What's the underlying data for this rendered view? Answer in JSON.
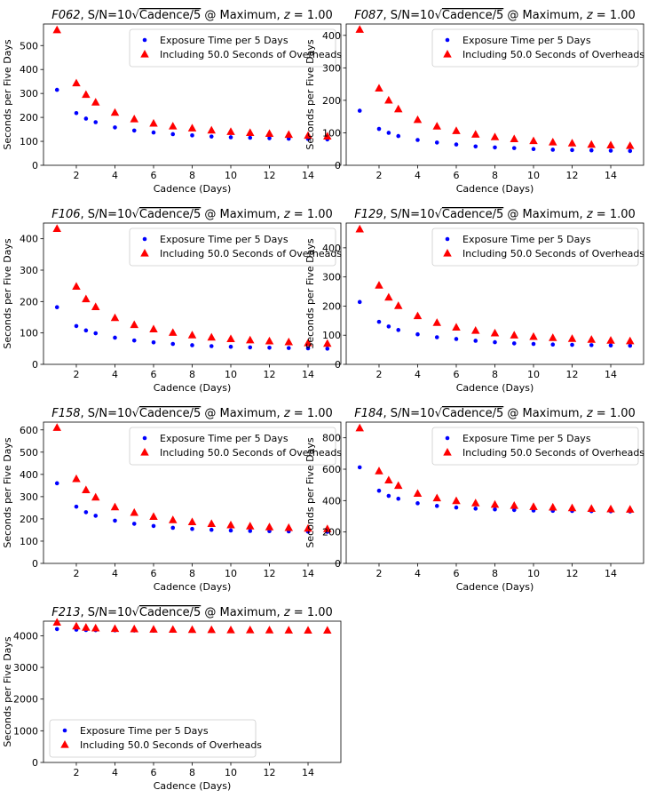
{
  "chart_data": [
    {
      "type": "scatter",
      "filter": "F062",
      "title_parts": {
        "filter": "F062",
        "sn_prefix": ", S/N=10",
        "sqrt_arg": "Cadence/5",
        "suffix": " @ Maximum, ",
        "z_var": "z",
        "z_value": " = 1.00"
      },
      "xlabel": "Cadence (Days)",
      "ylabel": "Seconds per Five Days",
      "xlim": [
        0.3,
        15.7
      ],
      "ylim": [
        0,
        590
      ],
      "xticks": [
        2,
        4,
        6,
        8,
        10,
        12,
        14
      ],
      "yticks": [
        0,
        100,
        200,
        300,
        400,
        500
      ],
      "legend_loc": "upper-right",
      "x": [
        1,
        2,
        2.5,
        3,
        4,
        5,
        6,
        7,
        8,
        9,
        10,
        11,
        12,
        13,
        14,
        15
      ],
      "series": [
        {
          "name": "Exposure Time per 5 Days",
          "marker": "circle",
          "color": "#0000ff",
          "values": [
            315,
            218,
            195,
            180,
            158,
            145,
            137,
            130,
            125,
            120,
            117,
            115,
            113,
            111,
            110,
            108
          ]
        },
        {
          "name": "Including 50.0 Seconds of Overheads",
          "marker": "triangle",
          "color": "#ff0000",
          "values": [
            565,
            343,
            295,
            263,
            220,
            193,
            175,
            163,
            155,
            146,
            140,
            136,
            132,
            128,
            124,
            121
          ]
        }
      ]
    },
    {
      "type": "scatter",
      "filter": "F087",
      "title_parts": {
        "filter": "F087",
        "sn_prefix": ", S/N=10",
        "sqrt_arg": "Cadence/5",
        "suffix": " @ Maximum, ",
        "z_var": "z",
        "z_value": " = 1.00"
      },
      "xlabel": "Cadence (Days)",
      "ylabel": "Seconds per Five Days",
      "xlim": [
        0.3,
        15.7
      ],
      "ylim": [
        0,
        435
      ],
      "xticks": [
        2,
        4,
        6,
        8,
        10,
        12,
        14
      ],
      "yticks": [
        0,
        100,
        200,
        300,
        400
      ],
      "legend_loc": "upper-right",
      "x": [
        1,
        2,
        2.5,
        3,
        4,
        5,
        6,
        7,
        8,
        9,
        10,
        11,
        12,
        13,
        14,
        15
      ],
      "series": [
        {
          "name": "Exposure Time per 5 Days",
          "marker": "circle",
          "color": "#0000ff",
          "values": [
            168,
            112,
            100,
            90,
            78,
            70,
            64,
            58,
            55,
            53,
            50,
            48,
            47,
            46,
            45,
            44
          ]
        },
        {
          "name": "Including 50.0 Seconds of Overheads",
          "marker": "triangle",
          "color": "#ff0000",
          "values": [
            418,
            237,
            200,
            173,
            140,
            120,
            106,
            95,
            87,
            81,
            75,
            71,
            68,
            64,
            62,
            60
          ]
        }
      ]
    },
    {
      "type": "scatter",
      "filter": "F106",
      "title_parts": {
        "filter": "F106",
        "sn_prefix": ", S/N=10",
        "sqrt_arg": "Cadence/5",
        "suffix": " @ Maximum, ",
        "z_var": "z",
        "z_value": " = 1.00"
      },
      "xlabel": "Cadence (Days)",
      "ylabel": "Seconds per Five Days",
      "xlim": [
        0.3,
        15.7
      ],
      "ylim": [
        0,
        450
      ],
      "xticks": [
        2,
        4,
        6,
        8,
        10,
        12,
        14
      ],
      "yticks": [
        0,
        100,
        200,
        300,
        400
      ],
      "legend_loc": "upper-right",
      "x": [
        1,
        2,
        2.5,
        3,
        4,
        5,
        6,
        7,
        8,
        9,
        10,
        11,
        12,
        13,
        14,
        15
      ],
      "series": [
        {
          "name": "Exposure Time per 5 Days",
          "marker": "circle",
          "color": "#0000ff",
          "values": [
            182,
            122,
            108,
            99,
            85,
            76,
            70,
            65,
            61,
            58,
            56,
            54,
            53,
            52,
            51,
            50
          ]
        },
        {
          "name": "Including 50.0 Seconds of Overheads",
          "marker": "triangle",
          "color": "#ff0000",
          "values": [
            432,
            248,
            208,
            183,
            148,
            126,
            112,
            101,
            93,
            86,
            81,
            77,
            74,
            71,
            68,
            66
          ]
        }
      ]
    },
    {
      "type": "scatter",
      "filter": "F129",
      "title_parts": {
        "filter": "F129",
        "sn_prefix": ", S/N=10",
        "sqrt_arg": "Cadence/5",
        "suffix": " @ Maximum, ",
        "z_var": "z",
        "z_value": " = 1.00"
      },
      "xlabel": "Cadence (Days)",
      "ylabel": "Seconds per Five Days",
      "xlim": [
        0.3,
        15.7
      ],
      "ylim": [
        0,
        485
      ],
      "xticks": [
        2,
        4,
        6,
        8,
        10,
        12,
        14
      ],
      "yticks": [
        0,
        100,
        200,
        300,
        400
      ],
      "legend_loc": "upper-right",
      "x": [
        1,
        2,
        2.5,
        3,
        4,
        5,
        6,
        7,
        8,
        9,
        10,
        11,
        12,
        13,
        14,
        15
      ],
      "series": [
        {
          "name": "Exposure Time per 5 Days",
          "marker": "circle",
          "color": "#0000ff",
          "values": [
            214,
            146,
            130,
            118,
            103,
            93,
            87,
            81,
            76,
            72,
            70,
            68,
            67,
            66,
            65,
            64
          ]
        },
        {
          "name": "Including 50.0 Seconds of Overheads",
          "marker": "triangle",
          "color": "#ff0000",
          "values": [
            464,
            271,
            230,
            201,
            166,
            143,
            127,
            116,
            107,
            100,
            95,
            91,
            88,
            85,
            82,
            80
          ]
        }
      ]
    },
    {
      "type": "scatter",
      "filter": "F158",
      "title_parts": {
        "filter": "F158",
        "sn_prefix": ", S/N=10",
        "sqrt_arg": "Cadence/5",
        "suffix": " @ Maximum, ",
        "z_var": "z",
        "z_value": " = 1.00"
      },
      "xlabel": "Cadence (Days)",
      "ylabel": "Seconds per Five Days",
      "xlim": [
        0.3,
        15.7
      ],
      "ylim": [
        0,
        635
      ],
      "xticks": [
        2,
        4,
        6,
        8,
        10,
        12,
        14
      ],
      "yticks": [
        0,
        100,
        200,
        300,
        400,
        500,
        600
      ],
      "legend_loc": "upper-right",
      "x": [
        1,
        2,
        2.5,
        3,
        4,
        5,
        6,
        7,
        8,
        9,
        10,
        11,
        12,
        13,
        14,
        15
      ],
      "series": [
        {
          "name": "Exposure Time per 5 Days",
          "marker": "circle",
          "color": "#0000ff",
          "values": [
            360,
            255,
            230,
            214,
            192,
            178,
            168,
            160,
            155,
            151,
            148,
            146,
            145,
            144,
            143,
            142
          ]
        },
        {
          "name": "Including 50.0 Seconds of Overheads",
          "marker": "triangle",
          "color": "#ff0000",
          "values": [
            610,
            380,
            330,
            297,
            253,
            228,
            210,
            195,
            186,
            178,
            172,
            167,
            163,
            160,
            157,
            155
          ]
        }
      ]
    },
    {
      "type": "scatter",
      "filter": "F184",
      "title_parts": {
        "filter": "F184",
        "sn_prefix": ", S/N=10",
        "sqrt_arg": "Cadence/5",
        "suffix": " @ Maximum, ",
        "z_var": "z",
        "z_value": " = 1.00"
      },
      "xlabel": "Cadence (Days)",
      "ylabel": "Seconds per Five Days",
      "xlim": [
        0.3,
        15.7
      ],
      "ylim": [
        0,
        900
      ],
      "xticks": [
        2,
        4,
        6,
        8,
        10,
        12,
        14
      ],
      "yticks": [
        0,
        200,
        400,
        600,
        800
      ],
      "legend_loc": "upper-right",
      "x": [
        1,
        2,
        2.5,
        3,
        4,
        5,
        6,
        7,
        8,
        9,
        10,
        11,
        12,
        13,
        14,
        15
      ],
      "series": [
        {
          "name": "Exposure Time per 5 Days",
          "marker": "circle",
          "color": "#0000ff",
          "values": [
            612,
            463,
            430,
            412,
            383,
            366,
            356,
            349,
            344,
            340,
            337,
            335,
            334,
            333,
            332,
            331
          ]
        },
        {
          "name": "Including 50.0 Seconds of Overheads",
          "marker": "triangle",
          "color": "#ff0000",
          "values": [
            862,
            588,
            530,
            495,
            445,
            416,
            398,
            384,
            375,
            368,
            361,
            357,
            353,
            349,
            346,
            344
          ]
        }
      ]
    },
    {
      "type": "scatter",
      "filter": "F213",
      "title_parts": {
        "filter": "F213",
        "sn_prefix": ", S/N=10",
        "sqrt_arg": "Cadence/5",
        "suffix": " @ Maximum, ",
        "z_var": "z",
        "z_value": " = 1.00"
      },
      "xlabel": "Cadence (Days)",
      "ylabel": "Seconds per Five Days",
      "xlim": [
        0.3,
        15.7
      ],
      "ylim": [
        0,
        4460
      ],
      "xticks": [
        2,
        4,
        6,
        8,
        10,
        12,
        14
      ],
      "yticks": [
        0,
        1000,
        2000,
        3000,
        4000
      ],
      "legend_loc": "lower-left",
      "x": [
        1,
        2,
        2.5,
        3,
        4,
        5,
        6,
        7,
        8,
        9,
        10,
        11,
        12,
        13,
        14,
        15
      ],
      "series": [
        {
          "name": "Exposure Time per 5 Days",
          "marker": "circle",
          "color": "#0000ff",
          "values": [
            4210,
            4190,
            4180,
            4175,
            4170,
            4165,
            4160,
            4157,
            4155,
            4152,
            4150,
            4148,
            4147,
            4146,
            4145,
            4144
          ]
        },
        {
          "name": "Including 50.0 Seconds of Overheads",
          "marker": "triangle",
          "color": "#ff0000",
          "values": [
            4420,
            4300,
            4260,
            4240,
            4220,
            4210,
            4200,
            4195,
            4190,
            4185,
            4180,
            4178,
            4175,
            4173,
            4170,
            4168
          ]
        }
      ]
    }
  ]
}
